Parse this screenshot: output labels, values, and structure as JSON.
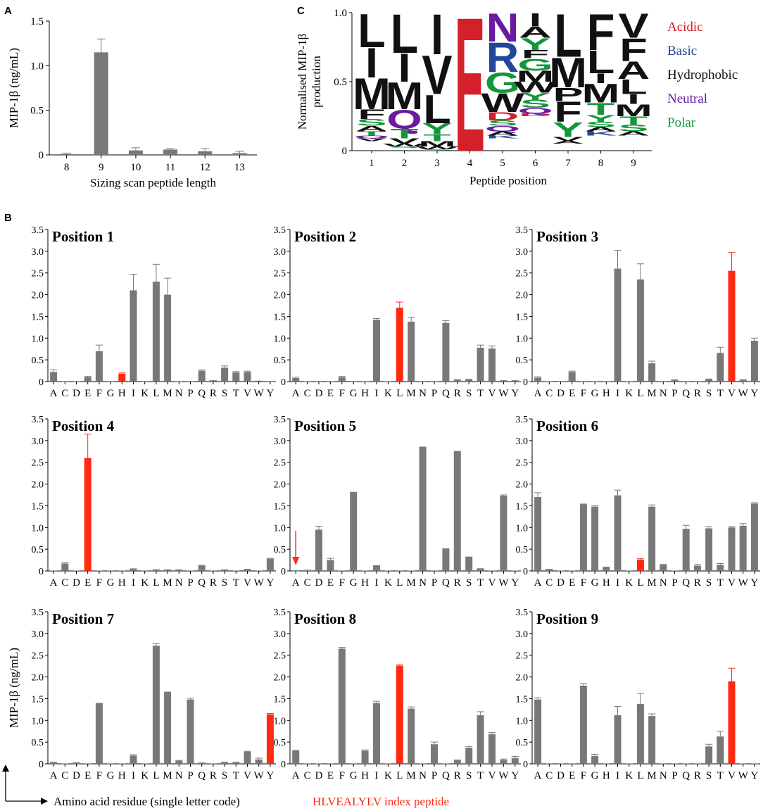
{
  "panels": {
    "A": "A",
    "B": "B",
    "C": "C"
  },
  "colors": {
    "gray": "#787878",
    "red": "#ff2a10",
    "acidic": "#d4202a",
    "basic": "#22469a",
    "hydrophobic": "#111111",
    "neutral": "#6a1aa0",
    "polar": "#14963c"
  },
  "footer": {
    "axis_label": "Amino acid residue (single letter code)",
    "index_label": "HLVEALYLV index peptide"
  },
  "chart_data": [
    {
      "id": "A",
      "type": "bar",
      "categories": [
        "8",
        "9",
        "10",
        "11",
        "12",
        "13"
      ],
      "values": [
        0.01,
        1.15,
        0.05,
        0.06,
        0.04,
        0.02
      ],
      "errors": [
        0.01,
        0.15,
        0.03,
        0.01,
        0.03,
        0.02
      ],
      "xlabel": "Sizing scan peptide length",
      "ylabel": "MIP-1β (ng/mL)",
      "ylim": [
        0,
        1.5
      ],
      "yticks": [
        "0",
        "0.5",
        "1.0",
        "1.5"
      ]
    },
    {
      "id": "C",
      "type": "sequence-logo",
      "xlabel": "Peptide position",
      "ylabel": "Normalised MIP-1β production",
      "ylim": [
        0,
        1.0
      ],
      "yticks": [
        "0",
        "0.5",
        "1.0"
      ],
      "positions": [
        "1",
        "2",
        "3",
        "4",
        "5",
        "6",
        "7",
        "8",
        "9"
      ],
      "legend": [
        {
          "label": "Acidic",
          "color": "#d4202a"
        },
        {
          "label": "Basic",
          "color": "#22469a"
        },
        {
          "label": "Hydrophobic",
          "color": "#111111"
        },
        {
          "label": "Neutral",
          "color": "#6a1aa0"
        },
        {
          "label": "Polar",
          "color": "#14963c"
        }
      ],
      "stacks": [
        [
          [
            "L",
            0.25
          ],
          [
            "I",
            0.22
          ],
          [
            "M",
            0.23
          ],
          [
            "F",
            0.07
          ],
          [
            "S",
            0.05
          ],
          [
            "A",
            0.04
          ],
          [
            "T",
            0.03
          ],
          [
            "Q",
            0.02
          ],
          [
            "V",
            0.02
          ]
        ],
        [
          [
            "L",
            0.29
          ],
          [
            "I",
            0.21
          ],
          [
            "M",
            0.2
          ],
          [
            "Q",
            0.14
          ],
          [
            "T",
            0.07
          ],
          [
            "V",
            0.04
          ],
          [
            "W",
            0.02
          ],
          [
            "S",
            0.01
          ]
        ],
        [
          [
            "I",
            0.3
          ],
          [
            "V",
            0.29
          ],
          [
            "L",
            0.21
          ],
          [
            "Y",
            0.08
          ],
          [
            "T",
            0.05
          ],
          [
            "M",
            0.04
          ],
          [
            "W",
            0.02
          ],
          [
            "S",
            0.01
          ]
        ],
        [
          [
            "E",
            1.0
          ]
        ],
        [
          [
            "N",
            0.21
          ],
          [
            "R",
            0.22
          ],
          [
            "G",
            0.15
          ],
          [
            "W",
            0.14
          ],
          [
            "D",
            0.06
          ],
          [
            "S",
            0.04
          ],
          [
            "Q",
            0.04
          ],
          [
            "A",
            0.03
          ],
          [
            "K",
            0.02
          ]
        ],
        [
          [
            "I",
            0.1
          ],
          [
            "A",
            0.08
          ],
          [
            "Y",
            0.09
          ],
          [
            "F",
            0.06
          ],
          [
            "G",
            0.09
          ],
          [
            "M",
            0.08
          ],
          [
            "W",
            0.08
          ],
          [
            "Y",
            0.05
          ],
          [
            "S",
            0.06
          ],
          [
            "Q",
            0.04
          ],
          [
            "D",
            0.02
          ]
        ],
        [
          [
            "L",
            0.32
          ],
          [
            "M",
            0.22
          ],
          [
            "P",
            0.1
          ],
          [
            "F",
            0.15
          ],
          [
            "Y",
            0.11
          ],
          [
            "V",
            0.03
          ],
          [
            "A",
            0.02
          ]
        ],
        [
          [
            "F",
            0.27
          ],
          [
            "L",
            0.17
          ],
          [
            "I",
            0.07
          ],
          [
            "M",
            0.14
          ],
          [
            "T",
            0.09
          ],
          [
            "Y",
            0.05
          ],
          [
            "S",
            0.04
          ],
          [
            "A",
            0.03
          ],
          [
            "K",
            0.03
          ]
        ],
        [
          [
            "V",
            0.18
          ],
          [
            "F",
            0.17
          ],
          [
            "A",
            0.13
          ],
          [
            "L",
            0.11
          ],
          [
            "I",
            0.07
          ],
          [
            "M",
            0.09
          ],
          [
            "T",
            0.06
          ],
          [
            "S",
            0.05
          ],
          [
            "A",
            0.03
          ]
        ]
      ]
    },
    {
      "id": "B",
      "type": "bar",
      "categories": [
        "A",
        "C",
        "D",
        "E",
        "F",
        "G",
        "H",
        "I",
        "K",
        "L",
        "M",
        "N",
        "P",
        "Q",
        "R",
        "S",
        "T",
        "V",
        "W",
        "Y"
      ],
      "ylabel": "MIP-1β (ng/mL)",
      "ylim": [
        0,
        3.5
      ],
      "yticks": [
        "0",
        "0.5",
        "1.0",
        "1.5",
        "2.0",
        "2.5",
        "3.0",
        "3.5"
      ],
      "subplots": [
        {
          "title": "Position 1",
          "highlight": 6,
          "values": [
            0.22,
            0.01,
            0.01,
            0.1,
            0.7,
            0.01,
            0.18,
            2.1,
            0.01,
            2.3,
            2.0,
            0.01,
            0.01,
            0.25,
            0.03,
            0.32,
            0.21,
            0.22,
            0.02,
            0.01
          ],
          "errors": [
            0.05,
            0,
            0,
            0.02,
            0.14,
            0,
            0.02,
            0.37,
            0,
            0.4,
            0.38,
            0,
            0,
            0.02,
            0,
            0.04,
            0.02,
            0.02,
            0,
            0
          ]
        },
        {
          "title": "Position 2",
          "highlight": 9,
          "values": [
            0.08,
            0.01,
            0.01,
            0.01,
            0.1,
            0.01,
            0.01,
            1.42,
            0.01,
            1.7,
            1.38,
            0.01,
            0.01,
            1.35,
            0.05,
            0.06,
            0.78,
            0.76,
            0.03,
            0.03
          ],
          "errors": [
            0.02,
            0,
            0,
            0,
            0.02,
            0,
            0,
            0.03,
            0,
            0.13,
            0.1,
            0,
            0,
            0.05,
            0,
            0,
            0.06,
            0.06,
            0,
            0
          ]
        },
        {
          "title": "Position 3",
          "highlight": 17,
          "values": [
            0.09,
            0.01,
            0.01,
            0.22,
            0.01,
            0.01,
            0.01,
            2.6,
            0.01,
            2.35,
            0.42,
            0.01,
            0.03,
            0.01,
            0.01,
            0.05,
            0.66,
            2.55,
            0.05,
            0.94
          ],
          "errors": [
            0.02,
            0,
            0,
            0.02,
            0,
            0,
            0,
            0.42,
            0,
            0.36,
            0.05,
            0,
            0.01,
            0,
            0,
            0.01,
            0.13,
            0.42,
            0,
            0.06
          ]
        },
        {
          "title": "Position 4",
          "highlight": 3,
          "values": [
            0.01,
            0.17,
            0.01,
            2.6,
            0.01,
            0.01,
            0.01,
            0.04,
            0.01,
            0.02,
            0.02,
            0.02,
            0.01,
            0.12,
            0.01,
            0.02,
            0.01,
            0.03,
            0.01,
            0.28
          ],
          "errors": [
            0,
            0.02,
            0,
            0.55,
            0,
            0,
            0,
            0.01,
            0,
            0.01,
            0.01,
            0.01,
            0,
            0.01,
            0,
            0.01,
            0,
            0.01,
            0,
            0.01
          ]
        },
        {
          "title": "Position 5",
          "highlight": -1,
          "arrow_index": 0,
          "values": [
            0.0,
            0.01,
            0.95,
            0.25,
            0.01,
            1.82,
            0.01,
            0.13,
            0.01,
            0.01,
            0.01,
            2.86,
            0.01,
            0.52,
            2.76,
            0.33,
            0.06,
            0.01,
            1.73,
            0.01
          ],
          "errors": [
            0,
            0.01,
            0.08,
            0.04,
            0,
            0,
            0,
            0,
            0,
            0,
            0,
            0,
            0,
            0,
            0,
            0,
            0,
            0,
            0.02,
            0
          ]
        },
        {
          "title": "Position 6",
          "highlight": 9,
          "values": [
            1.7,
            0.03,
            0.01,
            0.01,
            1.53,
            1.48,
            0.08,
            1.74,
            0.01,
            0.26,
            1.48,
            0.14,
            0.01,
            0.97,
            0.12,
            0.98,
            0.14,
            1.0,
            1.04,
            1.55
          ],
          "errors": [
            0.1,
            0.01,
            0,
            0,
            0.01,
            0.02,
            0.01,
            0.12,
            0,
            0.02,
            0.04,
            0.01,
            0,
            0.08,
            0.03,
            0.04,
            0.03,
            0.02,
            0.05,
            0.02
          ]
        },
        {
          "title": "Position 7",
          "highlight": 19,
          "values": [
            0.03,
            0.01,
            0.02,
            0.01,
            1.4,
            0.01,
            0.01,
            0.19,
            0.01,
            2.72,
            1.66,
            0.07,
            1.48,
            0.03,
            0.01,
            0.03,
            0.03,
            0.28,
            0.1,
            1.14
          ],
          "errors": [
            0.01,
            0,
            0.01,
            0,
            0,
            0,
            0,
            0.02,
            0,
            0.05,
            0,
            0.01,
            0.03,
            0,
            0,
            0.01,
            0.01,
            0.01,
            0.03,
            0.02
          ]
        },
        {
          "title": "Position 8",
          "highlight": 9,
          "values": [
            0.3,
            0.01,
            0.01,
            0.01,
            2.65,
            0.01,
            0.3,
            1.4,
            0.01,
            2.26,
            1.27,
            0.01,
            0.45,
            0.01,
            0.08,
            0.37,
            1.12,
            0.68,
            0.09,
            0.13
          ],
          "errors": [
            0.01,
            0,
            0,
            0,
            0.03,
            0,
            0.02,
            0.04,
            0,
            0.02,
            0.04,
            0,
            0.05,
            0,
            0.01,
            0.03,
            0.08,
            0.04,
            0.02,
            0.04
          ]
        },
        {
          "title": "Position 9",
          "highlight": 17,
          "values": [
            1.48,
            0.01,
            0.01,
            0.01,
            1.8,
            0.18,
            0.01,
            1.12,
            0.01,
            1.38,
            1.1,
            0.01,
            0.01,
            0.01,
            0.01,
            0.4,
            0.63,
            1.9,
            0.01,
            0.01
          ],
          "errors": [
            0.04,
            0,
            0,
            0,
            0.05,
            0.04,
            0,
            0.2,
            0,
            0.24,
            0.05,
            0,
            0,
            0,
            0,
            0.05,
            0.12,
            0.3,
            0,
            0
          ]
        }
      ]
    }
  ]
}
